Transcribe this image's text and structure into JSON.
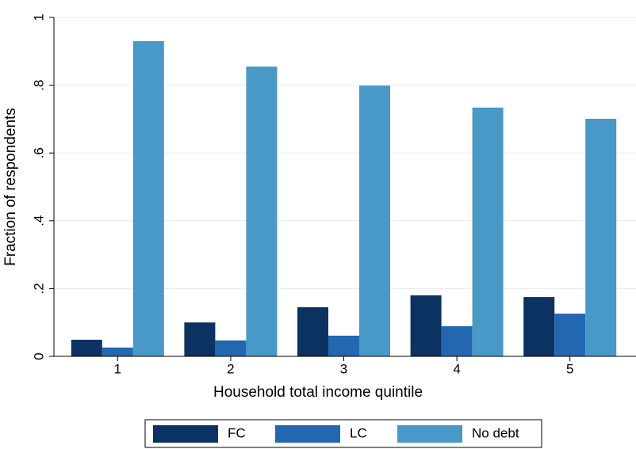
{
  "chart_data": {
    "type": "bar",
    "categories": [
      "1",
      "2",
      "3",
      "4",
      "5"
    ],
    "x_label": "Household total income quintile",
    "y_label": "Fraction of respondents",
    "series": [
      {
        "name": "FC",
        "color": "#0c3261",
        "values": [
          0.049,
          0.1,
          0.145,
          0.18,
          0.175
        ]
      },
      {
        "name": "LC",
        "color": "#2467b1",
        "values": [
          0.026,
          0.047,
          0.061,
          0.089,
          0.126
        ]
      },
      {
        "name": "No debt",
        "color": "#4899c8",
        "values": [
          0.93,
          0.855,
          0.799,
          0.734,
          0.701
        ]
      }
    ],
    "ylim": [
      0,
      1
    ],
    "yticks": [
      0,
      {
        "value": 0.2,
        "label": ".2"
      },
      {
        "value": 0.4,
        "label": ".4"
      },
      {
        "value": 0.6,
        "label": ".6"
      },
      {
        "value": 0.8,
        "label": ".8"
      },
      1
    ],
    "grid": true,
    "legend": "bottom"
  }
}
